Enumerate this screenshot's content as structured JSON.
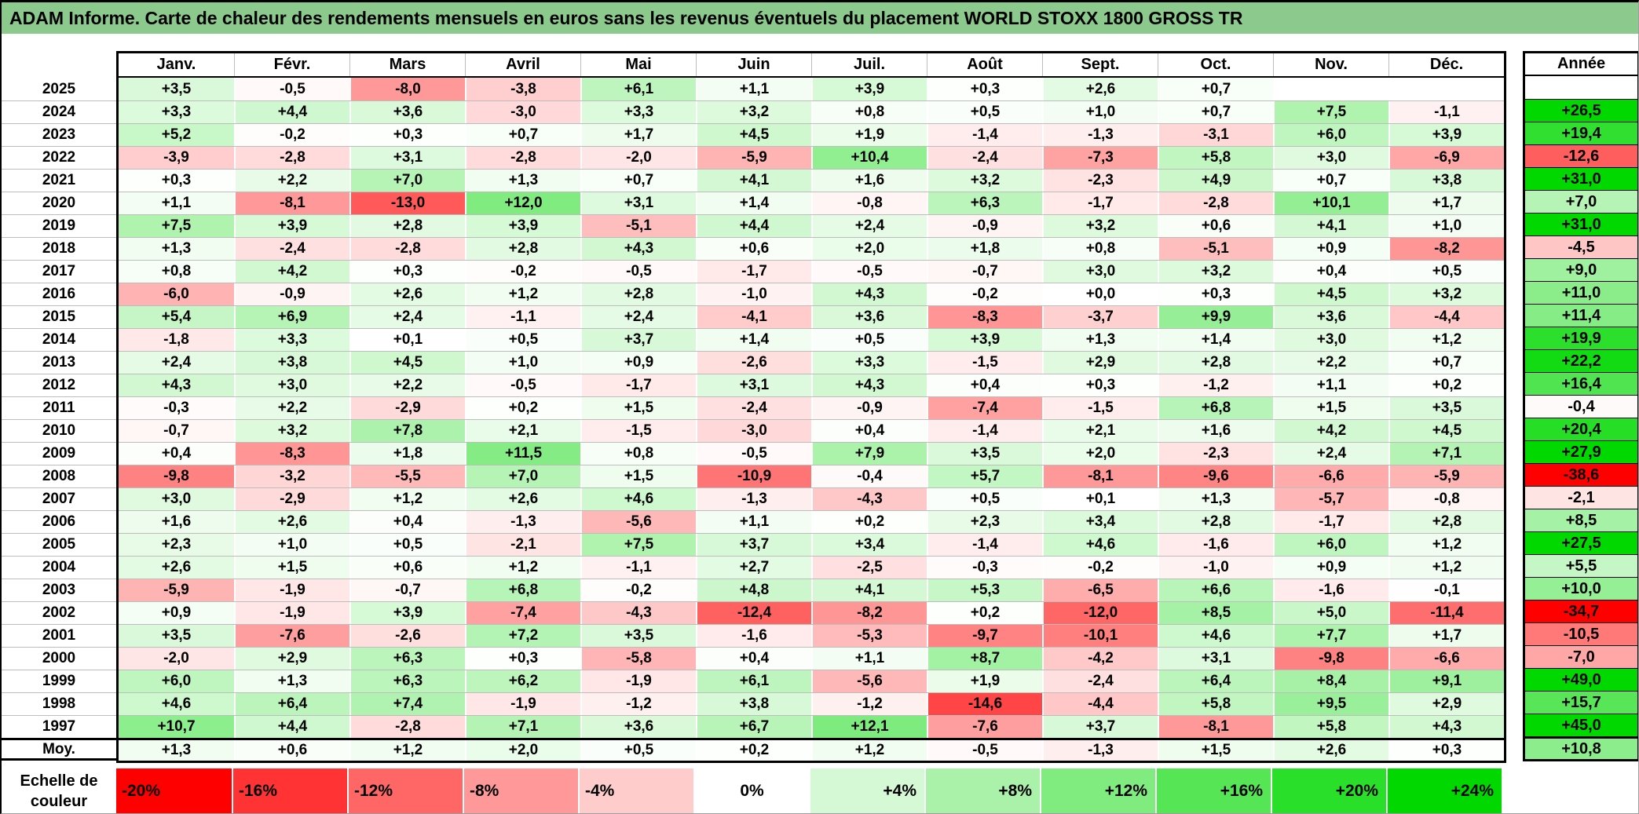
{
  "title": "ADAM Informe. Carte de chaleur des rendements mensuels en euros sans les revenus éventuels du placement WORLD STOXX 1800 GROSS TR",
  "colors": {
    "title_bg": "#8cc98c",
    "positive_end": "#00d800",
    "negative_end": "#ff0000",
    "neutral": "#ffffff",
    "grid_line": "#bdbdbd",
    "border": "#000000"
  },
  "chart_data": {
    "type": "heatmap",
    "title": "ADAM Informe. Carte de chaleur des rendements mensuels en euros sans les revenus éventuels du placement WORLD STOXX 1800 GROSS TR",
    "columns": [
      "Janv.",
      "Févr.",
      "Mars",
      "Avril",
      "Mai",
      "Juin",
      "Juil.",
      "Août",
      "Sept.",
      "Oct.",
      "Nov.",
      "Déc."
    ],
    "annual_header": "Année",
    "value_unit": "percent",
    "number_format": "signed, 1 decimal, comma separator",
    "rows": [
      {
        "label": "2025",
        "months": [
          3.5,
          -0.5,
          -8.0,
          -3.8,
          6.1,
          1.1,
          3.9,
          0.3,
          2.6,
          0.7,
          null,
          null
        ],
        "annual": null
      },
      {
        "label": "2024",
        "months": [
          3.3,
          4.4,
          3.6,
          -3.0,
          3.3,
          3.2,
          0.8,
          0.5,
          1.0,
          0.7,
          7.5,
          -1.1
        ],
        "annual": 26.5
      },
      {
        "label": "2023",
        "months": [
          5.2,
          -0.2,
          0.3,
          0.7,
          1.7,
          4.5,
          1.9,
          -1.4,
          -1.3,
          -3.1,
          6.0,
          3.9
        ],
        "annual": 19.4
      },
      {
        "label": "2022",
        "months": [
          -3.9,
          -2.8,
          3.1,
          -2.8,
          -2.0,
          -5.9,
          10.4,
          -2.4,
          -7.3,
          5.8,
          3.0,
          -6.9
        ],
        "annual": -12.6
      },
      {
        "label": "2021",
        "months": [
          0.3,
          2.2,
          7.0,
          1.3,
          0.7,
          4.1,
          1.6,
          3.2,
          -2.3,
          4.9,
          0.7,
          3.8
        ],
        "annual": 31.0
      },
      {
        "label": "2020",
        "months": [
          1.1,
          -8.1,
          -13.0,
          12.0,
          3.1,
          1.4,
          -0.8,
          6.3,
          -1.7,
          -2.8,
          10.1,
          1.7
        ],
        "annual": 7.0
      },
      {
        "label": "2019",
        "months": [
          7.5,
          3.9,
          2.8,
          3.9,
          -5.1,
          4.4,
          2.4,
          -0.9,
          3.2,
          0.6,
          4.1,
          1.0
        ],
        "annual": 31.0
      },
      {
        "label": "2018",
        "months": [
          1.3,
          -2.4,
          -2.8,
          2.8,
          4.3,
          0.6,
          2.0,
          1.8,
          0.8,
          -5.1,
          0.9,
          -8.2
        ],
        "annual": -4.5
      },
      {
        "label": "2017",
        "months": [
          0.8,
          4.2,
          0.3,
          -0.2,
          -0.5,
          -1.7,
          -0.5,
          -0.7,
          3.0,
          3.2,
          0.4,
          0.5
        ],
        "annual": 9.0
      },
      {
        "label": "2016",
        "months": [
          -6.0,
          -0.9,
          2.6,
          1.2,
          2.8,
          -1.0,
          4.3,
          -0.2,
          0.0,
          0.3,
          4.5,
          3.2
        ],
        "annual": 11.0
      },
      {
        "label": "2015",
        "months": [
          5.4,
          6.9,
          2.4,
          -1.1,
          2.4,
          -4.1,
          3.6,
          -8.3,
          -3.7,
          9.9,
          3.6,
          -4.4
        ],
        "annual": 11.4
      },
      {
        "label": "2014",
        "months": [
          -1.8,
          3.3,
          0.1,
          0.5,
          3.7,
          1.4,
          0.5,
          3.9,
          1.3,
          1.4,
          3.0,
          1.2
        ],
        "annual": 19.9
      },
      {
        "label": "2013",
        "months": [
          2.4,
          3.8,
          4.5,
          1.0,
          0.9,
          -2.6,
          3.3,
          -1.5,
          2.9,
          2.8,
          2.2,
          0.7
        ],
        "annual": 22.2
      },
      {
        "label": "2012",
        "months": [
          4.3,
          3.0,
          2.2,
          -0.5,
          -1.7,
          3.1,
          4.3,
          0.4,
          0.3,
          -1.2,
          1.1,
          0.2
        ],
        "annual": 16.4
      },
      {
        "label": "2011",
        "months": [
          -0.3,
          2.2,
          -2.9,
          0.2,
          1.5,
          -2.4,
          -0.9,
          -7.4,
          -1.5,
          6.8,
          1.5,
          3.5
        ],
        "annual": -0.4
      },
      {
        "label": "2010",
        "months": [
          -0.7,
          3.2,
          7.8,
          2.1,
          -1.5,
          -3.0,
          0.4,
          -1.4,
          2.1,
          1.6,
          4.2,
          4.5
        ],
        "annual": 20.4
      },
      {
        "label": "2009",
        "months": [
          0.4,
          -8.3,
          1.8,
          11.5,
          0.8,
          -0.5,
          7.9,
          3.5,
          2.0,
          -2.3,
          2.4,
          7.1
        ],
        "annual": 27.9
      },
      {
        "label": "2008",
        "months": [
          -9.8,
          -3.2,
          -5.5,
          7.0,
          1.5,
          -10.9,
          -0.4,
          5.7,
          -8.1,
          -9.6,
          -6.6,
          -5.9
        ],
        "annual": -38.6
      },
      {
        "label": "2007",
        "months": [
          3.0,
          -2.9,
          1.2,
          2.6,
          4.6,
          -1.3,
          -4.3,
          0.5,
          0.1,
          1.3,
          -5.7,
          -0.8
        ],
        "annual": -2.1
      },
      {
        "label": "2006",
        "months": [
          1.6,
          2.6,
          0.4,
          -1.3,
          -5.6,
          1.1,
          0.2,
          2.3,
          3.4,
          2.8,
          -1.7,
          2.8
        ],
        "annual": 8.5
      },
      {
        "label": "2005",
        "months": [
          2.3,
          1.0,
          0.5,
          -2.1,
          7.5,
          3.7,
          3.4,
          -1.4,
          4.6,
          -1.6,
          6.0,
          1.2
        ],
        "annual": 27.5
      },
      {
        "label": "2004",
        "months": [
          2.6,
          1.5,
          0.6,
          1.2,
          -1.1,
          2.7,
          -2.5,
          -0.3,
          -0.2,
          -1.0,
          0.9,
          1.2
        ],
        "annual": 5.5
      },
      {
        "label": "2003",
        "months": [
          -5.9,
          -1.9,
          -0.7,
          6.8,
          -0.2,
          4.8,
          4.1,
          5.3,
          -6.5,
          6.6,
          -1.6,
          -0.1
        ],
        "annual": 10.0
      },
      {
        "label": "2002",
        "months": [
          0.9,
          -1.9,
          3.9,
          -7.4,
          -4.3,
          -12.4,
          -8.2,
          0.2,
          -12.0,
          8.5,
          5.0,
          -11.4
        ],
        "annual": -34.7
      },
      {
        "label": "2001",
        "months": [
          3.5,
          -7.6,
          -2.6,
          7.2,
          3.5,
          -1.6,
          -5.3,
          -9.7,
          -10.1,
          4.6,
          7.7,
          1.7
        ],
        "annual": -10.5
      },
      {
        "label": "2000",
        "months": [
          -2.0,
          2.9,
          6.3,
          0.3,
          -5.8,
          0.4,
          1.1,
          8.7,
          -4.2,
          3.1,
          -9.8,
          -6.6
        ],
        "annual": -7.0
      },
      {
        "label": "1999",
        "months": [
          6.0,
          1.3,
          6.3,
          6.2,
          -1.9,
          6.1,
          -5.6,
          1.9,
          -2.4,
          6.4,
          8.4,
          9.1
        ],
        "annual": 49.0
      },
      {
        "label": "1998",
        "months": [
          4.6,
          6.4,
          7.4,
          -1.9,
          -1.2,
          3.8,
          -1.2,
          -14.6,
          -4.4,
          5.8,
          9.5,
          2.9
        ],
        "annual": 15.7
      },
      {
        "label": "1997",
        "months": [
          10.7,
          4.4,
          -2.8,
          7.1,
          3.6,
          6.7,
          12.1,
          -7.6,
          3.7,
          -8.1,
          5.8,
          4.3
        ],
        "annual": 45.0
      },
      {
        "label": "Moy.",
        "is_average": true,
        "months": [
          1.3,
          0.6,
          1.2,
          2.0,
          0.5,
          0.2,
          1.2,
          -0.5,
          -1.3,
          1.5,
          2.6,
          0.3
        ],
        "annual": 10.8
      }
    ],
    "scale": {
      "label_line1": "Echelle de",
      "label_line2": "couleur",
      "negative_domain": -20,
      "positive_domain": 24,
      "ticks": [
        {
          "label": "-20%",
          "value": -20
        },
        {
          "label": "-16%",
          "value": -16
        },
        {
          "label": "-12%",
          "value": -12
        },
        {
          "label": "-8%",
          "value": -8
        },
        {
          "label": "-4%",
          "value": -4
        },
        {
          "label": "0%",
          "value": 0
        },
        {
          "label": "+4%",
          "value": 4
        },
        {
          "label": "+8%",
          "value": 8
        },
        {
          "label": "+12%",
          "value": 12
        },
        {
          "label": "+16%",
          "value": 16
        },
        {
          "label": "+20%",
          "value": 20
        },
        {
          "label": "+24%",
          "value": 24
        }
      ]
    }
  }
}
